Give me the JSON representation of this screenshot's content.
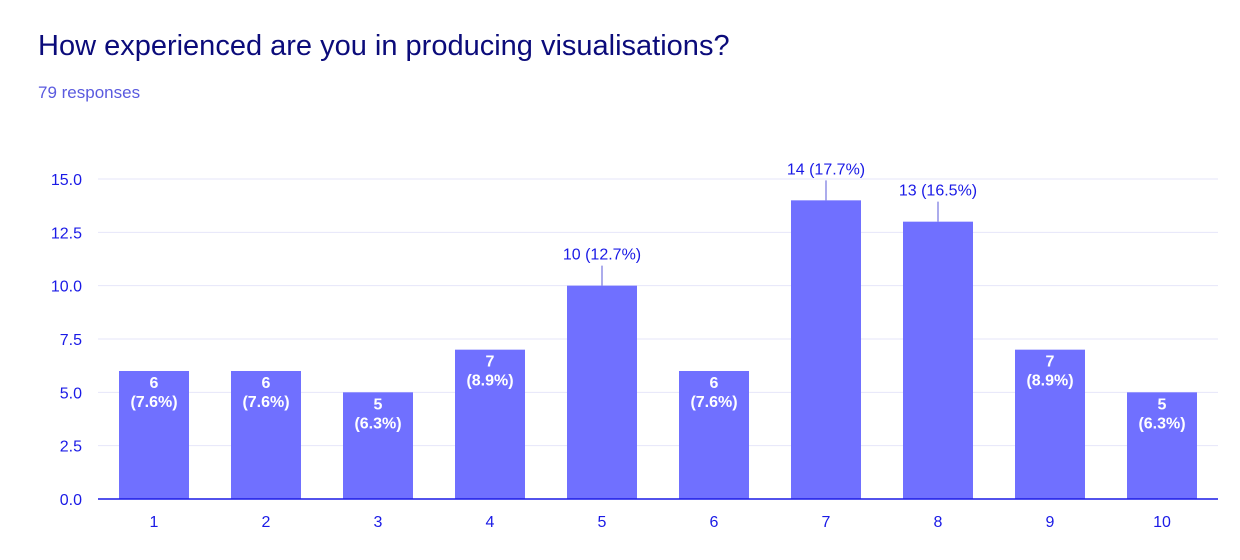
{
  "header": {
    "title": "How experienced are you in producing visualisations?",
    "responses": "79 responses"
  },
  "colors": {
    "bar": "#7070ff",
    "grid": "#e6e6fa",
    "axis": "#1a1ae6",
    "title": "#0b0b7a",
    "subtitle": "#5a5adf"
  },
  "chart_data": {
    "type": "bar",
    "title": "How experienced are you in producing visualisations?",
    "subtitle": "79 responses",
    "categories": [
      "1",
      "2",
      "3",
      "4",
      "5",
      "6",
      "7",
      "8",
      "9",
      "10"
    ],
    "values": [
      6,
      6,
      5,
      7,
      10,
      6,
      14,
      13,
      7,
      5
    ],
    "percents": [
      "7.6%",
      "7.6%",
      "6.3%",
      "8.9%",
      "12.7%",
      "7.6%",
      "17.7%",
      "16.5%",
      "8.9%",
      "6.3%"
    ],
    "yticks": [
      "0.0",
      "2.5",
      "5.0",
      "7.5",
      "10.0",
      "12.5",
      "15.0"
    ],
    "ylim": [
      0,
      15
    ],
    "xlabel": "",
    "ylabel": "",
    "grid": true,
    "legend": "none"
  }
}
